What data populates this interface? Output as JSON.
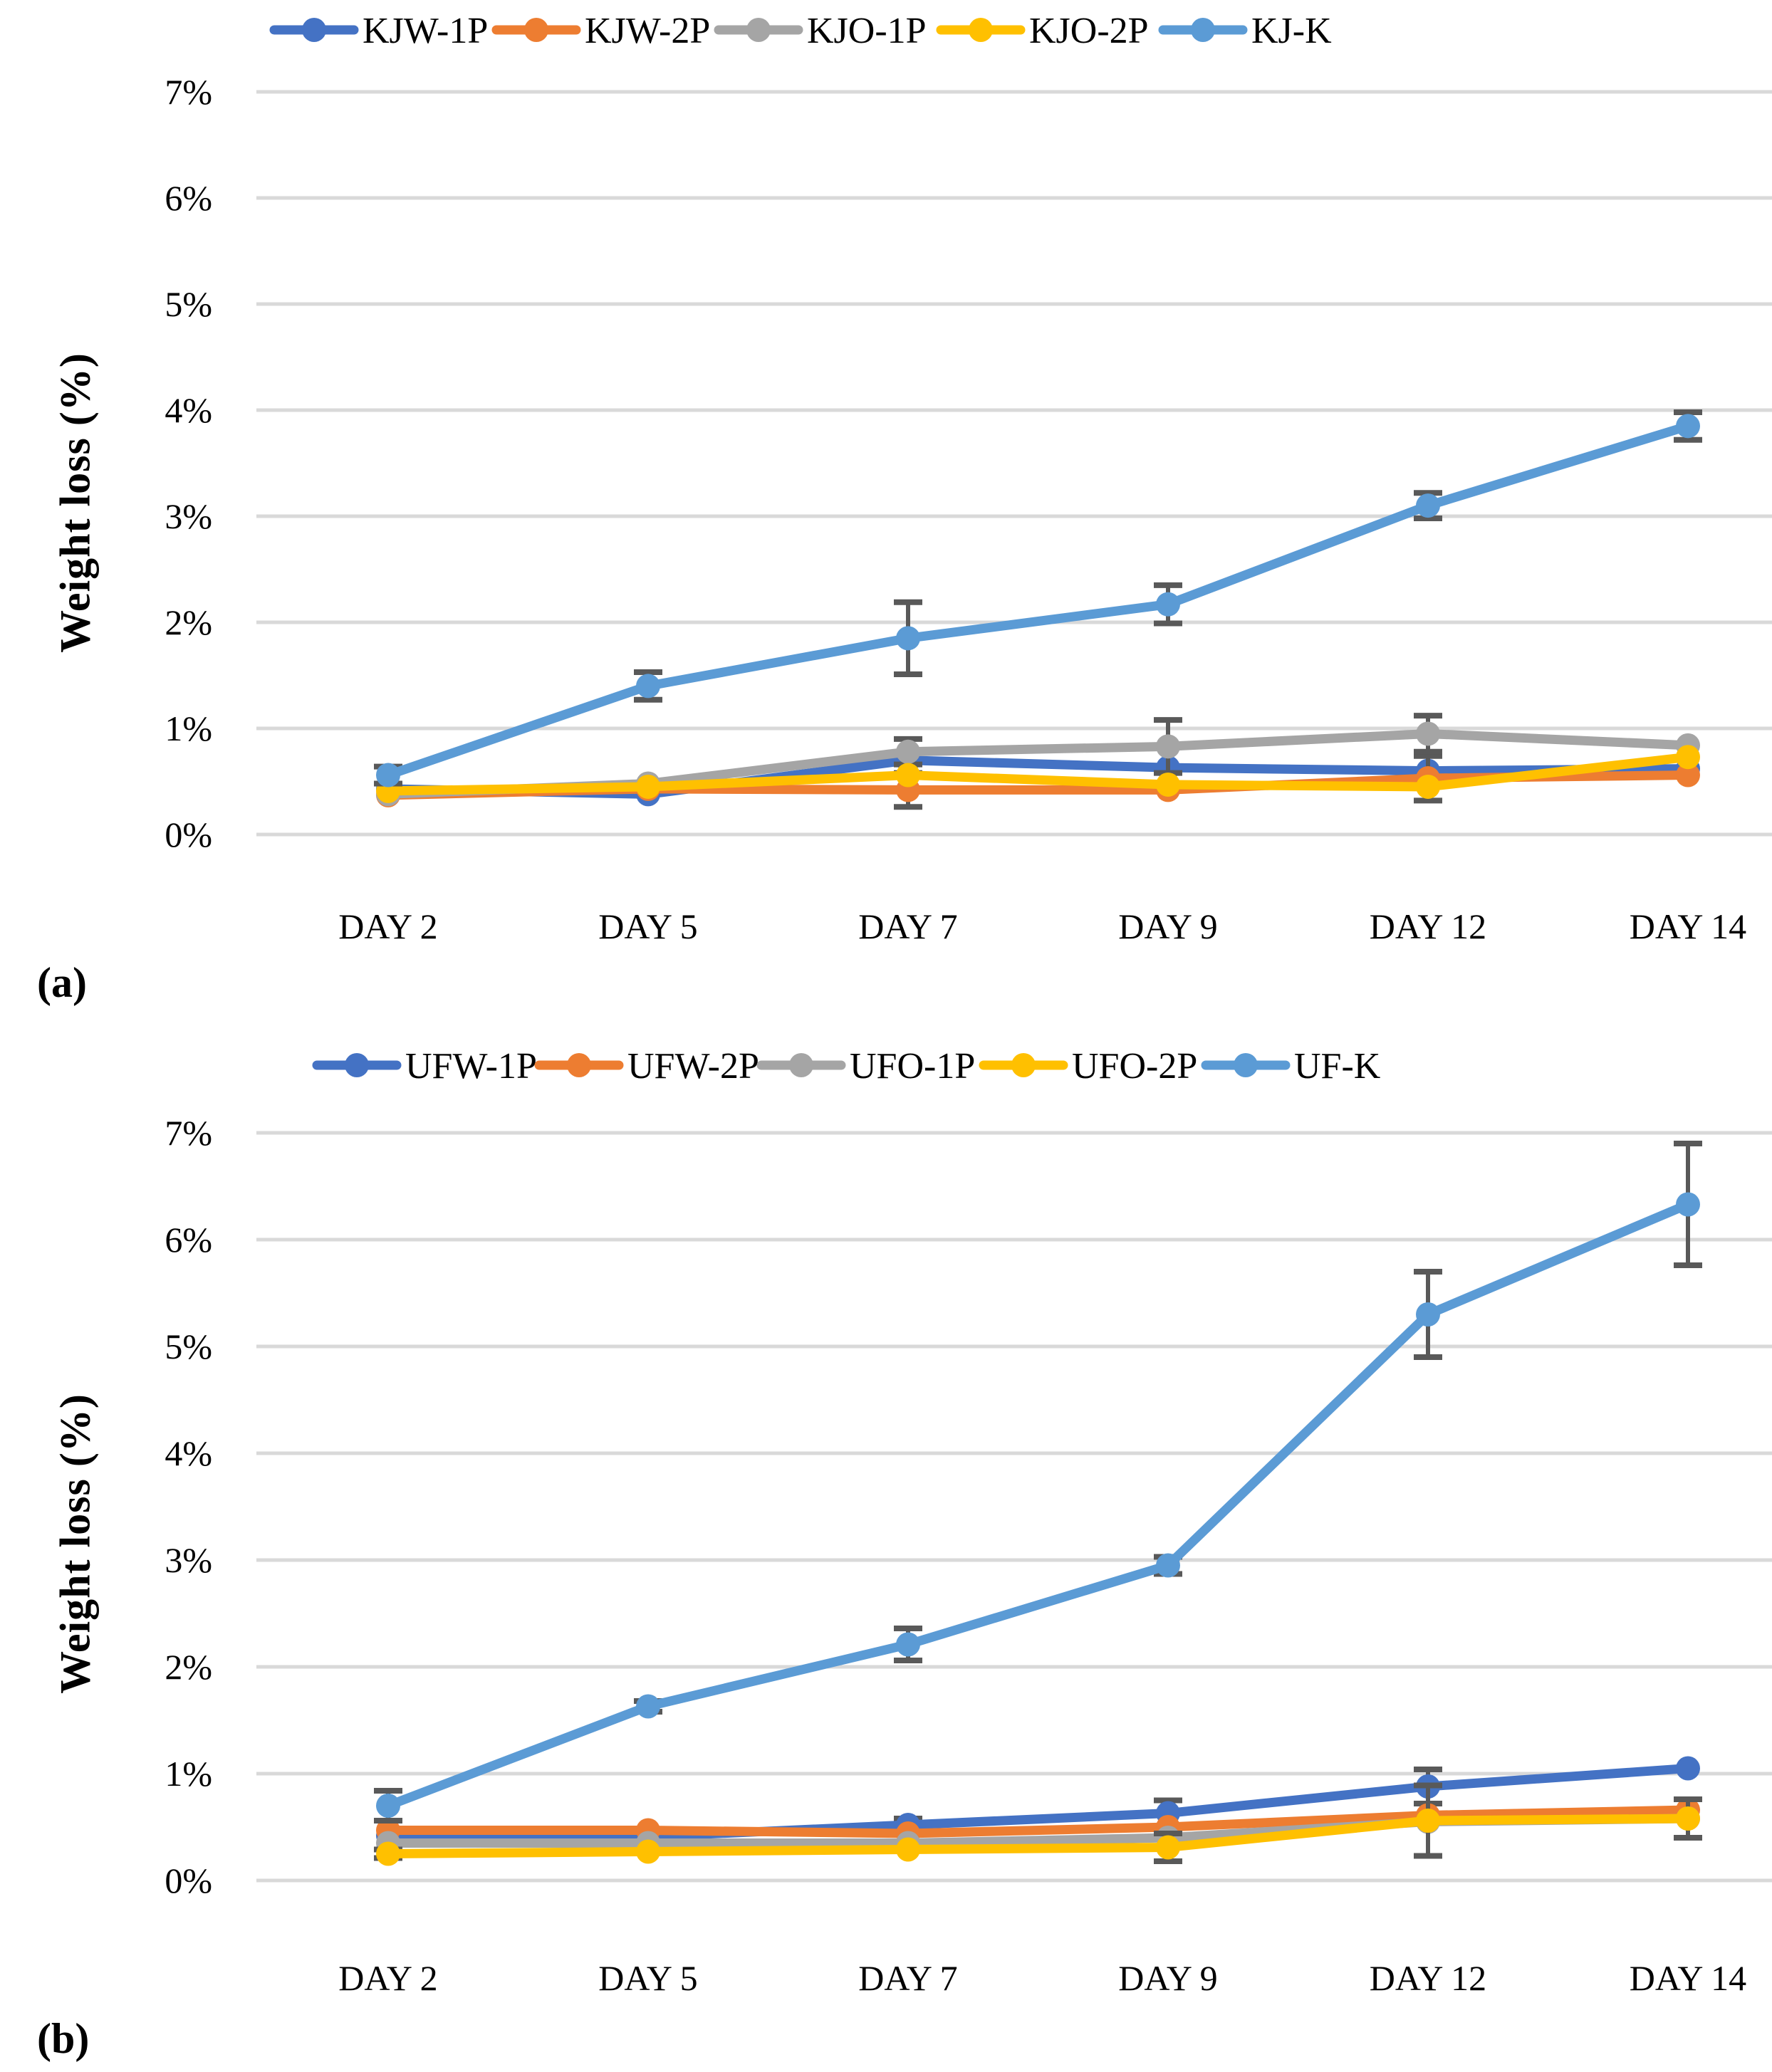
{
  "figure": {
    "background": "#ffffff",
    "gridline_color": "#d9d9d9",
    "error_bar_color": "#595959",
    "text_color": "#000000"
  },
  "chart_data": [
    {
      "type": "line",
      "panel_label": "(a)",
      "ylabel": "Weight loss (%)",
      "ylim": [
        0,
        7
      ],
      "y_tick_labels": [
        "0%",
        "1%",
        "2%",
        "3%",
        "4%",
        "5%",
        "6%",
        "7%"
      ],
      "categories": [
        "DAY 2",
        "DAY 5",
        "DAY 7",
        "DAY 9",
        "DAY 12",
        "DAY 14"
      ],
      "grid": true,
      "legend_position": "top",
      "series": [
        {
          "name": "KJW-1P",
          "color": "#4472C4",
          "values": [
            0.43,
            0.38,
            0.7,
            0.63,
            0.6,
            0.62
          ],
          "errors": [
            0,
            0,
            0,
            0,
            0,
            0
          ]
        },
        {
          "name": "KJW-2P",
          "color": "#ED7D31",
          "values": [
            0.37,
            0.43,
            0.42,
            0.42,
            0.53,
            0.56
          ],
          "errors": [
            0,
            0,
            0.16,
            0,
            0.21,
            0
          ]
        },
        {
          "name": "KJO-1P",
          "color": "#A5A5A5",
          "values": [
            0.38,
            0.48,
            0.78,
            0.83,
            0.95,
            0.84
          ],
          "errors": [
            0,
            0,
            0.12,
            0.25,
            0.17,
            0
          ]
        },
        {
          "name": "KJO-2P",
          "color": "#FFC000",
          "values": [
            0.41,
            0.45,
            0.56,
            0.47,
            0.45,
            0.73
          ],
          "errors": [
            0,
            0,
            0,
            0,
            0,
            0
          ]
        },
        {
          "name": "KJ-K",
          "color": "#5B9BD5",
          "values": [
            0.56,
            1.4,
            1.85,
            2.17,
            3.1,
            3.85
          ],
          "errors": [
            0.08,
            0.13,
            0.34,
            0.18,
            0.12,
            0.13
          ]
        }
      ]
    },
    {
      "type": "line",
      "panel_label": "(b)",
      "ylabel": "Weight loss (%)",
      "ylim": [
        0,
        7
      ],
      "y_tick_labels": [
        "0%",
        "1%",
        "2%",
        "3%",
        "4%",
        "5%",
        "6%",
        "7%"
      ],
      "categories": [
        "DAY 2",
        "DAY 5",
        "DAY 7",
        "DAY 9",
        "DAY 12",
        "DAY 14"
      ],
      "grid": true,
      "legend_position": "top",
      "series": [
        {
          "name": "UFW-1P",
          "color": "#4472C4",
          "values": [
            0.42,
            0.41,
            0.52,
            0.63,
            0.88,
            1.05
          ],
          "errors": [
            0,
            0,
            0.06,
            0.12,
            0.16,
            0
          ]
        },
        {
          "name": "UFW-2P",
          "color": "#ED7D31",
          "values": [
            0.47,
            0.47,
            0.44,
            0.5,
            0.61,
            0.66
          ],
          "errors": [
            0,
            0,
            0,
            0,
            0,
            0
          ]
        },
        {
          "name": "UFO-1P",
          "color": "#A5A5A5",
          "values": [
            0.35,
            0.35,
            0.35,
            0.4,
            0.55,
            0.58
          ],
          "errors": [
            0,
            0,
            0,
            0,
            0,
            0
          ]
        },
        {
          "name": "UFO-2P",
          "color": "#FFC000",
          "values": [
            0.25,
            0.27,
            0.29,
            0.31,
            0.56,
            0.58
          ],
          "errors": [
            0.04,
            0,
            0,
            0.13,
            0.33,
            0.18
          ]
        },
        {
          "name": "UF-K",
          "color": "#5B9BD5",
          "values": [
            0.7,
            1.63,
            2.21,
            2.95,
            5.3,
            6.33
          ],
          "errors": [
            0.14,
            0.05,
            0.15,
            0.08,
            0.4,
            0.57
          ]
        }
      ]
    }
  ]
}
